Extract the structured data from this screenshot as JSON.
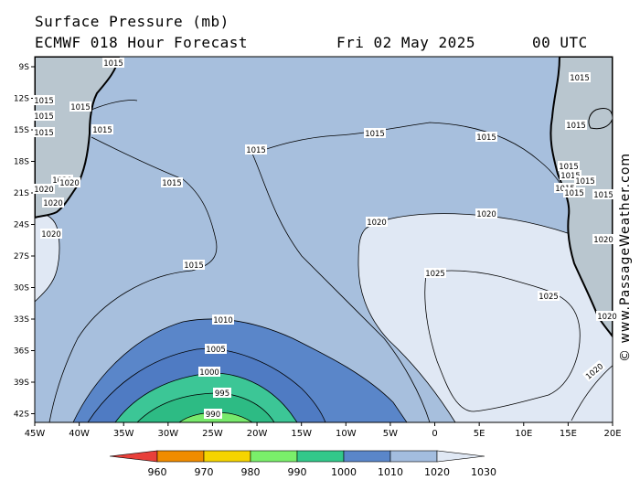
{
  "header": {
    "title": "Surface Pressure (mb)",
    "model": "ECMWF 018 Hour Forecast",
    "date": "Fri 02 May 2025",
    "time": "00 UTC"
  },
  "credit": "© www.PassageWeather.com",
  "lat_labels": [
    "9S",
    "12S",
    "15S",
    "18S",
    "21S",
    "24S",
    "27S",
    "30S",
    "33S",
    "36S",
    "39S",
    "42S"
  ],
  "lon_labels": [
    "45W",
    "40W",
    "35W",
    "30W",
    "25W",
    "20W",
    "15W",
    "10W",
    "5W",
    "0",
    "5E",
    "10E",
    "15E",
    "20E"
  ],
  "isobar_labels": {
    "l1015_a": "1015",
    "l1015_b": "1015",
    "l1015_c": "1015",
    "l1015_d": "1015",
    "l1015_e": "1015",
    "l1015_f": "1015",
    "l1015_g": "1015",
    "l1015_h": "1015",
    "l1015_i": "1015",
    "l1015_j": "1015",
    "l1015_k": "1015",
    "l1015_l": "1015",
    "l1015_m": "1015",
    "l1015_n": "1015",
    "l1015_o": "1015",
    "l1015_p": "1015",
    "l1015_q": "1015",
    "l1015_r": "1015",
    "l1015_s": "1015",
    "l1020_a": "1020",
    "l1020_b": "1020",
    "l1020_c": "1020",
    "l1020_d": "1020",
    "l1020_e": "1020",
    "l1020_f": "1020",
    "l1020_g": "1020",
    "l1020_h": "1020",
    "l1020_i": "1020",
    "l1020_j": "1020",
    "l1025": "1025",
    "l1025_b": "1025",
    "l1010": "1010",
    "l1005": "1005",
    "l1000": "1000",
    "l995": "995",
    "l990": "990"
  },
  "colorbar": {
    "labels": [
      "960",
      "970",
      "980",
      "990",
      "1000",
      "1010",
      "1020",
      "1030"
    ],
    "colors": [
      "#e8403a",
      "#f08c00",
      "#f5d400",
      "#7aef6a",
      "#32c88a",
      "#5a86c9",
      "#a3bddf",
      "#e0e8f4"
    ]
  }
}
